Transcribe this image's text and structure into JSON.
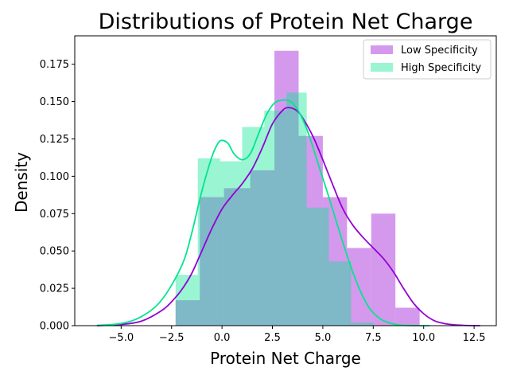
{
  "chart_data": {
    "type": "histogram-kde",
    "title": "Distributions of Protein Net Charge",
    "xlabel": "Protein Net Charge",
    "ylabel": "Density",
    "xlim": [
      -7.3,
      13.6
    ],
    "ylim": [
      0,
      0.194
    ],
    "x_ticks": [
      -5.0,
      -2.5,
      0.0,
      2.5,
      5.0,
      7.5,
      10.0,
      12.5
    ],
    "x_tick_labels": [
      "−5.0",
      "−2.5",
      "0.0",
      "2.5",
      "5.0",
      "7.5",
      "10.0",
      "12.5"
    ],
    "y_ticks": [
      0.0,
      0.025,
      0.05,
      0.075,
      0.1,
      0.125,
      0.15,
      0.175
    ],
    "y_tick_labels": [
      "0.000",
      "0.025",
      "0.050",
      "0.075",
      "0.100",
      "0.125",
      "0.150",
      "0.175"
    ],
    "legend_position": "top-right",
    "grid": false,
    "series": [
      {
        "name": "Low Specificity",
        "color": "#9400d3",
        "bin_edges": [
          -2.3,
          -1.1,
          0.1,
          1.4,
          2.6,
          3.8,
          5.0,
          6.2,
          7.4,
          8.6,
          9.8
        ],
        "values": [
          0.017,
          0.086,
          0.092,
          0.104,
          0.184,
          0.127,
          0.086,
          0.052,
          0.075,
          0.012
        ],
        "kde": {
          "x": [
            -6.2,
            -5.0,
            -4.0,
            -3.0,
            -2.5,
            -2.0,
            -1.5,
            -1.0,
            -0.5,
            0.0,
            0.5,
            1.0,
            1.5,
            2.0,
            2.5,
            3.0,
            3.3,
            3.7,
            4.0,
            4.5,
            5.0,
            5.5,
            6.0,
            6.5,
            7.0,
            7.5,
            8.0,
            8.5,
            9.0,
            9.5,
            10.0,
            10.5,
            11.0,
            11.5,
            12.0,
            12.8
          ],
          "y": [
            0.0,
            0.0008,
            0.003,
            0.01,
            0.016,
            0.024,
            0.035,
            0.05,
            0.065,
            0.078,
            0.087,
            0.095,
            0.105,
            0.119,
            0.135,
            0.144,
            0.146,
            0.144,
            0.139,
            0.127,
            0.111,
            0.094,
            0.078,
            0.067,
            0.059,
            0.052,
            0.045,
            0.036,
            0.025,
            0.015,
            0.008,
            0.0035,
            0.0015,
            0.0006,
            0.0002,
            0.0
          ]
        }
      },
      {
        "name": "High Specificity",
        "color": "#00e68e",
        "bin_edges": [
          -2.3,
          -1.2,
          -0.1,
          1.0,
          2.1,
          3.2,
          4.2,
          5.3,
          6.4,
          7.5
        ],
        "values": [
          0.034,
          0.112,
          0.11,
          0.133,
          0.144,
          0.156,
          0.079,
          0.043,
          0.002
        ],
        "kde": {
          "x": [
            -6.2,
            -5.0,
            -4.0,
            -3.0,
            -2.0,
            -1.5,
            -1.0,
            -0.5,
            -0.2,
            0.0,
            0.3,
            0.6,
            1.0,
            1.4,
            1.8,
            2.2,
            2.6,
            3.0,
            3.2,
            3.5,
            3.9,
            4.3,
            4.8,
            5.3,
            5.8,
            6.3,
            6.8,
            7.3,
            7.8,
            8.3,
            8.8,
            9.3,
            9.8,
            10.3
          ],
          "y": [
            0.0002,
            0.0015,
            0.006,
            0.017,
            0.04,
            0.062,
            0.09,
            0.113,
            0.122,
            0.124,
            0.122,
            0.115,
            0.111,
            0.115,
            0.128,
            0.141,
            0.149,
            0.151,
            0.151,
            0.149,
            0.141,
            0.128,
            0.107,
            0.086,
            0.064,
            0.043,
            0.025,
            0.012,
            0.005,
            0.0018,
            0.0005,
            0.0001,
            0.0,
            0.0
          ]
        }
      }
    ]
  }
}
